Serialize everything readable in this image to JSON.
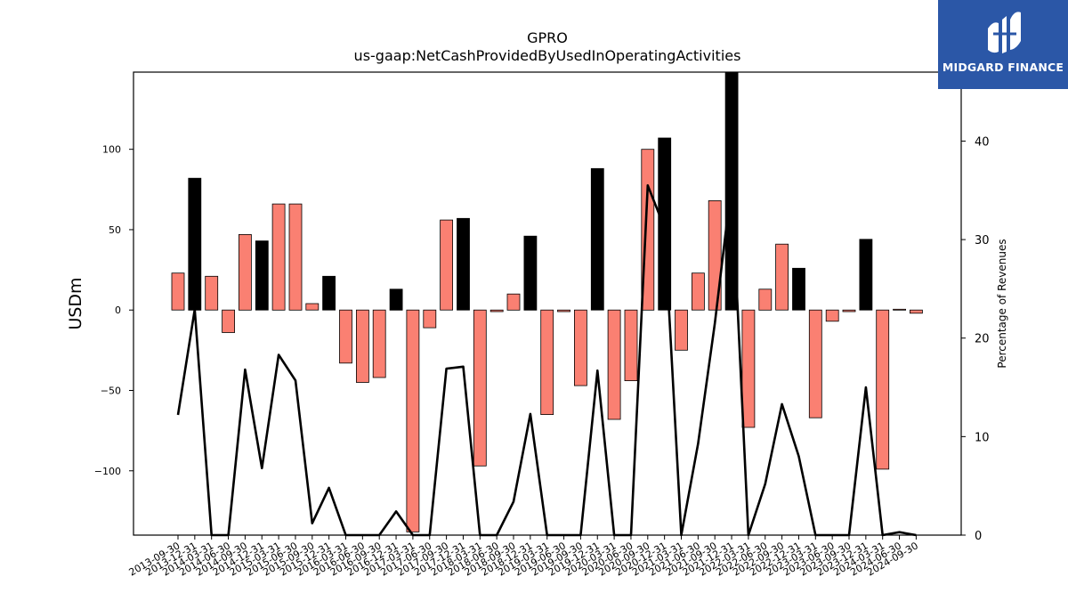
{
  "chart_data": {
    "type": "bar",
    "title": "GPRO",
    "subtitle": "us-gaap:NetCashProvidedByUsedInOperatingActivities",
    "ylabel": "USDm",
    "ylabel_right": "Percentage of Revenues",
    "ylim": [
      -140,
      148
    ],
    "ylim_right": [
      0,
      47
    ],
    "yticks": [
      -100,
      -50,
      0,
      50,
      100
    ],
    "yticks_right": [
      0,
      10,
      20,
      30,
      40
    ],
    "categories": [
      "2013-09-30",
      "2013-12-31",
      "2014-03-31",
      "2014-06-30",
      "2014-09-30",
      "2014-12-31",
      "2015-03-31",
      "2015-06-30",
      "2015-09-30",
      "2015-12-31",
      "2016-03-31",
      "2016-06-30",
      "2016-09-30",
      "2016-12-31",
      "2017-03-31",
      "2017-06-30",
      "2017-09-30",
      "2017-12-31",
      "2018-03-31",
      "2018-06-30",
      "2018-09-30",
      "2018-12-31",
      "2019-03-31",
      "2019-06-30",
      "2019-09-30",
      "2019-12-31",
      "2020-03-31",
      "2020-06-30",
      "2020-09-30",
      "2020-12-31",
      "2021-03-31",
      "2021-06-30",
      "2021-09-30",
      "2021-12-31",
      "2022-03-31",
      "2022-06-30",
      "2022-09-30",
      "2022-12-31",
      "2023-03-31",
      "2023-06-30",
      "2023-09-30",
      "2023-12-31",
      "2024-03-31",
      "2024-06-30",
      "2024-09-30"
    ],
    "series": [
      {
        "kind": "bar",
        "axis": "left",
        "values": [
          23,
          82,
          21,
          -14,
          47,
          43,
          66,
          66,
          4,
          21,
          -33,
          -45,
          -42,
          13,
          -138,
          -11,
          56,
          57,
          -97,
          -1,
          10,
          46,
          -65,
          -1,
          -47,
          88,
          -68,
          -44,
          100,
          107,
          -25,
          23,
          68,
          150,
          -73,
          13,
          41,
          26,
          -67,
          -7,
          -1,
          44,
          -99,
          0.5,
          -2
        ],
        "highlight": [
          false,
          true,
          false,
          false,
          false,
          true,
          false,
          false,
          false,
          true,
          false,
          false,
          false,
          true,
          false,
          false,
          false,
          true,
          false,
          false,
          false,
          true,
          false,
          false,
          false,
          true,
          false,
          false,
          false,
          true,
          false,
          false,
          false,
          true,
          false,
          false,
          false,
          true,
          false,
          false,
          false,
          true,
          false,
          false,
          false
        ]
      },
      {
        "kind": "line",
        "axis": "right",
        "values": [
          12.2,
          22.9,
          null,
          null,
          16.8,
          6.8,
          18.3,
          15.7,
          1.2,
          4.8,
          null,
          null,
          null,
          2.4,
          null,
          null,
          16.9,
          17.1,
          null,
          null,
          3.4,
          12.3,
          null,
          null,
          null,
          16.7,
          null,
          null,
          35.5,
          31.2,
          null,
          9.3,
          21.5,
          35.8,
          null,
          5.2,
          13.3,
          8.0,
          null,
          null,
          null,
          15.0,
          null,
          0.3,
          null
        ]
      }
    ],
    "colors": {
      "bar_default": "#fa8072",
      "bar_highlight": "#000000",
      "bar_edge": "#000000",
      "line": "#000000"
    }
  },
  "logo": {
    "name": "MIDGARD FINANCE",
    "icon": "midgard-logo-icon"
  }
}
